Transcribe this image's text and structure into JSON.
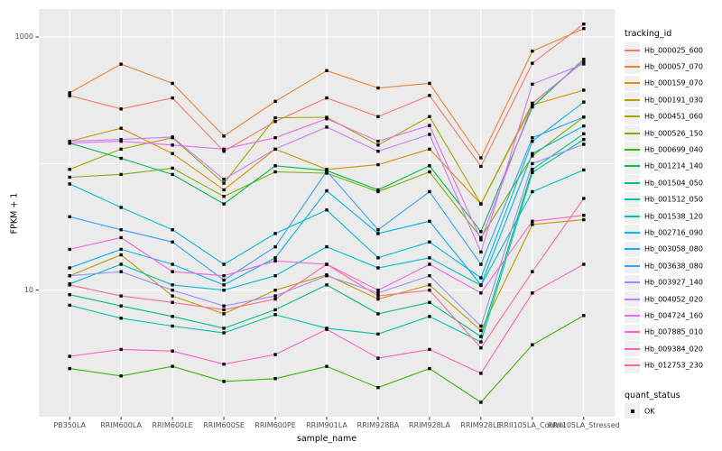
{
  "figure": {
    "background": "#ffffff",
    "panel_background": "#ebebeb",
    "grid_color": "#ffffff",
    "tick_mark_color": "#333333",
    "tick_label_color": "#4d4d4d",
    "point_color": "#000000"
  },
  "legend": {
    "tracking_title": "tracking_id",
    "quant_title": "quant_status",
    "quant_items": [
      {
        "label": "OK",
        "marker": "black-square"
      }
    ]
  },
  "chart_data": {
    "type": "line",
    "title": "",
    "xlabel": "sample_name",
    "ylabel": "FPKM + 1",
    "y_scale": "log10",
    "ylim": [
      1,
      1663
    ],
    "y_ticks": [
      {
        "value": 1000,
        "label": "1000"
      },
      {
        "value": 10,
        "label": "10"
      }
    ],
    "y_minor_gridlines": [
      100
    ],
    "grid": "on",
    "legend_position": "right",
    "point_marker": "small-black-square",
    "categories": [
      "PB350LA",
      "RRIM600LA",
      "RRIM600LE",
      "RRIM600SE",
      "RRIM600PE",
      "RRIM901LA",
      "RRIM928BA",
      "RRIM928LA",
      "RRIM928LE",
      "RRII105LA_Control",
      "RRII105LA_Stressed"
    ],
    "series": [
      {
        "name": "Hb_000025_600",
        "color": "#F8766D",
        "values": [
          344,
          270,
          330,
          125,
          215,
          330,
          235,
          345,
          95,
          620,
          1265
        ]
      },
      {
        "name": "Hb_000057_070",
        "color": "#EA8331",
        "values": [
          362,
          610,
          430,
          165,
          310,
          542,
          395,
          430,
          111,
          773,
          1165
        ]
      },
      {
        "name": "Hb_000159_070",
        "color": "#D89000",
        "values": [
          150,
          190,
          120,
          62,
          130,
          90,
          98,
          130,
          48,
          290,
          380
        ]
      },
      {
        "name": "Hb_000191_030",
        "color": "#C09B00",
        "values": [
          13,
          19,
          9,
          6.5,
          10,
          13.2,
          8.5,
          11,
          4.8,
          33,
          36
        ]
      },
      {
        "name": "Hb_000451_060",
        "color": "#A3A500",
        "values": [
          90,
          130,
          160,
          70,
          230,
          232,
          140,
          235,
          48,
          300,
          640
        ]
      },
      {
        "name": "Hb_000526_150",
        "color": "#7CAE00",
        "values": [
          78,
          82,
          92,
          55,
          86,
          84,
          60,
          86,
          26,
          115,
          233
        ]
      },
      {
        "name": "Hb_000699_040",
        "color": "#39B600",
        "values": [
          2.4,
          2.1,
          2.5,
          1.9,
          2.0,
          2.5,
          1.7,
          2.4,
          1.3,
          3.7,
          6.3
        ]
      },
      {
        "name": "Hb_001214_140",
        "color": "#00BB4E",
        "values": [
          145,
          110,
          82,
          48,
          96,
          88,
          62,
          96,
          29,
          280,
          667
        ]
      },
      {
        "name": "Hb_001504_050",
        "color": "#00BF7D",
        "values": [
          9.2,
          7.5,
          6.2,
          5.0,
          7.0,
          11,
          6.5,
          8.0,
          4.3,
          90,
          172
        ]
      },
      {
        "name": "Hb_001512_050",
        "color": "#00C1A3",
        "values": [
          7.6,
          6.0,
          5.2,
          4.6,
          6.4,
          5.0,
          4.5,
          6.2,
          3.9,
          85,
          155
        ]
      },
      {
        "name": "Hb_001538_120",
        "color": "#00BFC4",
        "values": [
          11.2,
          16,
          11,
          10,
          13,
          22,
          15,
          18,
          10.9,
          60,
          89
        ]
      },
      {
        "name": "Hb_002716_090",
        "color": "#00BAE0",
        "values": [
          69,
          45,
          30,
          16,
          28,
          43,
          18,
          24,
          12.5,
          150,
          306
        ]
      },
      {
        "name": "Hb_003058_080",
        "color": "#00B0F6",
        "values": [
          15,
          21,
          16,
          11,
          18,
          61,
          28,
          35,
          11,
          120,
          198
        ]
      },
      {
        "name": "Hb_003638_080",
        "color": "#35A2FF",
        "values": [
          38,
          30,
          24,
          12,
          22,
          87,
          30,
          60,
          16,
          160,
          233
        ]
      },
      {
        "name": "Hb_003927_140",
        "color": "#9590FF",
        "values": [
          13,
          14,
          10,
          7.5,
          9.0,
          13,
          9.5,
          13,
          5.2,
          100,
          142
        ]
      },
      {
        "name": "Hb_004052_020",
        "color": "#C77CFF",
        "values": [
          150,
          155,
          162,
          75,
          130,
          194,
          125,
          170,
          20,
          424,
          612
        ]
      },
      {
        "name": "Hb_004724_160",
        "color": "#E76BF3",
        "values": [
          145,
          150,
          140,
          130,
          160,
          226,
          150,
          200,
          25,
          297,
          640
        ]
      },
      {
        "name": "Hb_007885_010",
        "color": "#FA62DB",
        "values": [
          21,
          26,
          14,
          13,
          17,
          16,
          10,
          16,
          9.5,
          35,
          39
        ]
      },
      {
        "name": "Hb_009384_020",
        "color": "#FF62BC",
        "values": [
          3.0,
          3.4,
          3.3,
          2.6,
          3.1,
          4.9,
          2.9,
          3.4,
          2.2,
          9.5,
          16
        ]
      },
      {
        "name": "Hb_012753_230",
        "color": "#FF6A98",
        "values": [
          11,
          9,
          8,
          7,
          8.5,
          16,
          9,
          10,
          3.5,
          14,
          53
        ]
      }
    ]
  }
}
